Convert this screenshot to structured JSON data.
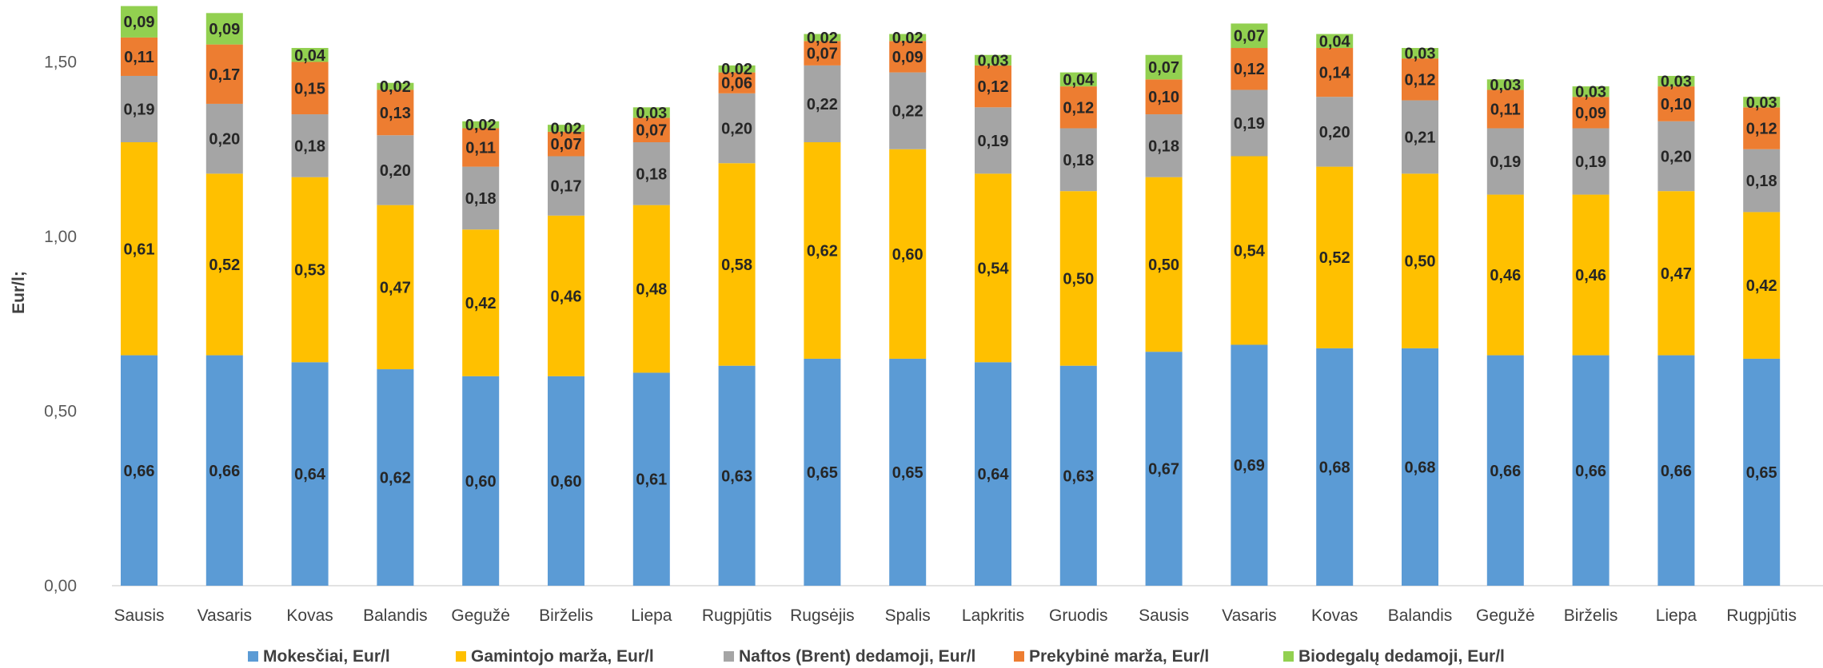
{
  "chart_data": {
    "type": "bar",
    "stacked": true,
    "title": "",
    "xlabel": "",
    "ylabel": "Eur/l;",
    "ylim": [
      0,
      1.65
    ],
    "yticks": [
      "0,00",
      "0,50",
      "1,00",
      "1,50"
    ],
    "grid": false,
    "legend_position": "bottom",
    "categories": [
      "Sausis",
      "Vasaris",
      "Kovas",
      "Balandis",
      "Gegužė",
      "Birželis",
      "Liepa",
      "Rugpjūtis",
      "Rugsėjis",
      "Spalis",
      "Lapkritis",
      "Gruodis",
      "Sausis",
      "Vasaris",
      "Kovas",
      "Balandis",
      "Gegužė",
      "Birželis",
      "Liepa",
      "Rugpjūtis"
    ],
    "series": [
      {
        "name": "Mokesčiai, Eur/l",
        "color": "#5B9BD5",
        "values": [
          0.66,
          0.66,
          0.64,
          0.62,
          0.6,
          0.6,
          0.61,
          0.63,
          0.65,
          0.65,
          0.64,
          0.63,
          0.67,
          0.69,
          0.68,
          0.68,
          0.66,
          0.66,
          0.66,
          0.65
        ]
      },
      {
        "name": "Gamintojo marža, Eur/l",
        "color": "#FFC000",
        "values": [
          0.61,
          0.52,
          0.53,
          0.47,
          0.42,
          0.46,
          0.48,
          0.58,
          0.62,
          0.6,
          0.54,
          0.5,
          0.5,
          0.54,
          0.52,
          0.5,
          0.46,
          0.46,
          0.47,
          0.42
        ]
      },
      {
        "name": "Naftos (Brent) dedamoji, Eur/l",
        "color": "#A5A5A5",
        "values": [
          0.19,
          0.2,
          0.18,
          0.2,
          0.18,
          0.17,
          0.18,
          0.2,
          0.22,
          0.22,
          0.19,
          0.18,
          0.18,
          0.19,
          0.2,
          0.21,
          0.19,
          0.19,
          0.2,
          0.18
        ]
      },
      {
        "name": "Prekybinė marža, Eur/l",
        "color": "#ED7D31",
        "values": [
          0.11,
          0.17,
          0.15,
          0.13,
          0.11,
          0.07,
          0.07,
          0.06,
          0.07,
          0.09,
          0.12,
          0.12,
          0.1,
          0.12,
          0.14,
          0.12,
          0.11,
          0.09,
          0.1,
          0.12
        ]
      },
      {
        "name": "Biodegalų dedamoji, Eur/l",
        "color": "#92D050",
        "values": [
          0.09,
          0.09,
          0.04,
          0.02,
          0.02,
          0.02,
          0.03,
          0.02,
          0.02,
          0.02,
          0.03,
          0.04,
          0.07,
          0.07,
          0.04,
          0.03,
          0.03,
          0.03,
          0.03,
          0.03
        ]
      }
    ]
  }
}
